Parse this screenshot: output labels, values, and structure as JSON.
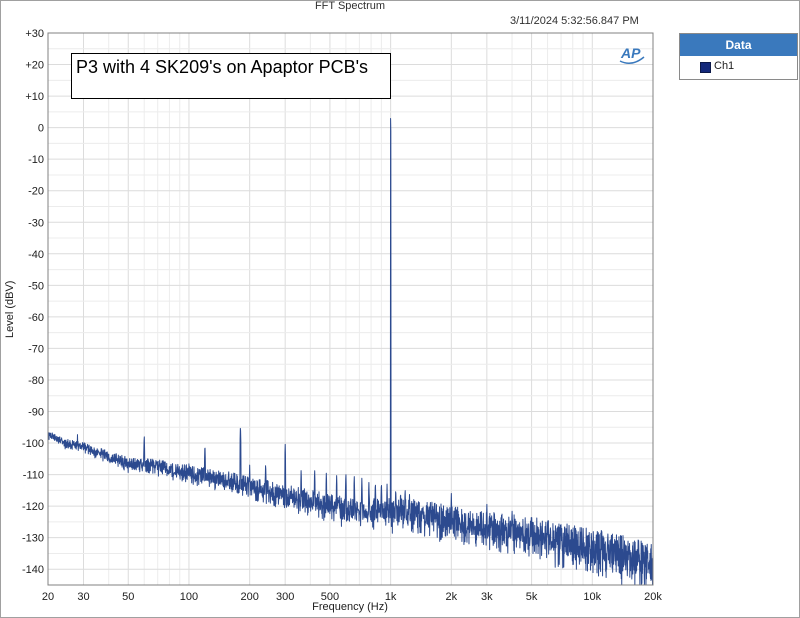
{
  "window": {
    "title": "FFT Spectrum",
    "timestamp": "3/11/2024 5:32:56.847 PM"
  },
  "legend": {
    "header": "Data",
    "items": [
      {
        "label": "Ch1",
        "color": "#13287a"
      }
    ]
  },
  "logo": {
    "text": "AP",
    "color": "#3a79bd"
  },
  "chart_data": {
    "type": "line",
    "title": "FFT Spectrum",
    "xlabel": "Frequency (Hz)",
    "ylabel": "Level (dBV)",
    "x_scale": "log",
    "xlim": [
      20,
      20000
    ],
    "ylim": [
      -145,
      30
    ],
    "x_ticks": [
      20,
      30,
      50,
      100,
      200,
      300,
      500,
      1000,
      2000,
      3000,
      5000,
      10000,
      20000
    ],
    "x_tick_labels": [
      "20",
      "30",
      "50",
      "100",
      "200",
      "300",
      "500",
      "1k",
      "2k",
      "3k",
      "5k",
      "10k",
      "20k"
    ],
    "y_ticks": [
      30,
      20,
      10,
      0,
      -10,
      -20,
      -30,
      -40,
      -50,
      -60,
      -70,
      -80,
      -90,
      -100,
      -110,
      -120,
      -130,
      -140
    ],
    "y_tick_labels": [
      "+30",
      "+20",
      "+10",
      "0",
      "-10",
      "-20",
      "-30",
      "-40",
      "-50",
      "-60",
      "-70",
      "-80",
      "-90",
      "-100",
      "-110",
      "-120",
      "-130",
      "-140"
    ],
    "grid": true,
    "annotation": "P3 with 4 SK209's on Apaptor PCB's",
    "series": [
      {
        "name": "Ch1",
        "color": "#2c4a8f",
        "noise_floor": [
          [
            20,
            -97
          ],
          [
            25,
            -100
          ],
          [
            30,
            -101
          ],
          [
            40,
            -104
          ],
          [
            50,
            -106
          ],
          [
            70,
            -107
          ],
          [
            100,
            -109
          ],
          [
            150,
            -111
          ],
          [
            200,
            -113
          ],
          [
            300,
            -116
          ],
          [
            500,
            -119
          ],
          [
            700,
            -121
          ],
          [
            1000,
            -121
          ],
          [
            1500,
            -122
          ],
          [
            2000,
            -124
          ],
          [
            3000,
            -126
          ],
          [
            5000,
            -128
          ],
          [
            7000,
            -130
          ],
          [
            10000,
            -132
          ],
          [
            15000,
            -135
          ],
          [
            20000,
            -137
          ]
        ],
        "peaks": [
          [
            28,
            -97
          ],
          [
            35,
            -102
          ],
          [
            42,
            -103
          ],
          [
            60,
            -97
          ],
          [
            100,
            -106
          ],
          [
            120,
            -100
          ],
          [
            180,
            -94
          ],
          [
            200,
            -107
          ],
          [
            240,
            -106
          ],
          [
            300,
            -100
          ],
          [
            360,
            -108
          ],
          [
            420,
            -108
          ],
          [
            480,
            -109
          ],
          [
            540,
            -110
          ],
          [
            600,
            -109
          ],
          [
            660,
            -110
          ],
          [
            720,
            -111
          ],
          [
            780,
            -112
          ],
          [
            840,
            -112
          ],
          [
            900,
            -112
          ],
          [
            960,
            -113
          ],
          [
            1000,
            4
          ],
          [
            1060,
            -114
          ],
          [
            1120,
            -115
          ],
          [
            1180,
            -114
          ],
          [
            1240,
            -116
          ],
          [
            2000,
            -116
          ],
          [
            3000,
            -119
          ],
          [
            4000,
            -121
          ],
          [
            5000,
            -123
          ],
          [
            6000,
            -124
          ],
          [
            7000,
            -125
          ]
        ]
      }
    ]
  }
}
